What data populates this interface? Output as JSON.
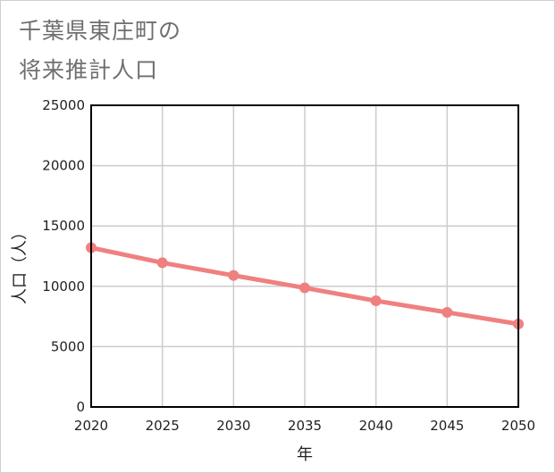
{
  "chart_data": {
    "type": "line",
    "title_lines": [
      "千葉県東庄町の",
      "将来推計人口"
    ],
    "xlabel": "年",
    "ylabel": "人口（人）",
    "x": [
      2020,
      2025,
      2030,
      2035,
      2040,
      2045,
      2050
    ],
    "series": [
      {
        "name": "人口",
        "values": [
          13200,
          11950,
          10900,
          9870,
          8800,
          7840,
          6880
        ]
      }
    ],
    "xlim": [
      2020,
      2050
    ],
    "ylim": [
      0,
      25000
    ],
    "yticks": [
      0,
      5000,
      10000,
      15000,
      20000,
      25000
    ],
    "xticks": [
      2020,
      2025,
      2030,
      2035,
      2040,
      2045,
      2050
    ],
    "grid": true,
    "colors": {
      "line": "#f08080",
      "grid": "#cccccc",
      "axis": "#000000"
    }
  }
}
